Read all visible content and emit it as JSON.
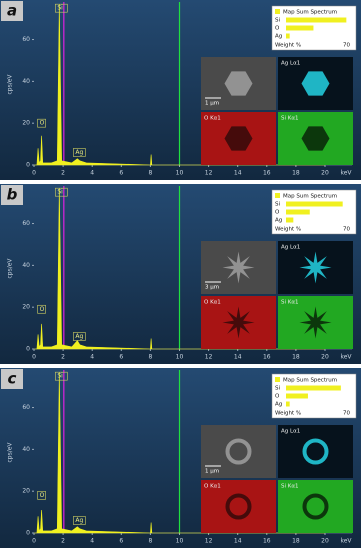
{
  "chart_data": [
    {
      "type": "line",
      "panel": "a",
      "ylabel": "cps/eV",
      "xunit": "keV",
      "color": "#f0f020",
      "x": [
        0,
        0.2,
        0.28,
        0.36,
        0.45,
        0.52,
        0.6,
        1.2,
        1.6,
        1.74,
        1.9,
        2.6,
        2.98,
        3.15,
        3.6,
        8.0,
        8.05,
        8.1,
        20
      ],
      "values": [
        0,
        0,
        8,
        1,
        2,
        14,
        1,
        1,
        2,
        77,
        2,
        1,
        3,
        2,
        1,
        0,
        5,
        0,
        0
      ],
      "xlim": [
        0,
        20
      ],
      "xticks": [
        0,
        2,
        4,
        6,
        8,
        10,
        12,
        14,
        16,
        18,
        20
      ],
      "ylim": [
        0,
        77
      ],
      "yticks": [
        0,
        20,
        40,
        60
      ],
      "annotations": [
        {
          "text": "O",
          "x": 0.52,
          "y": 20
        },
        {
          "text": "Si",
          "x": 1.74,
          "y": 75
        },
        {
          "text": "Ag",
          "x": 2.98,
          "y": 6
        }
      ],
      "cursor_lines": [
        {
          "x": 2.05,
          "color": "#e020e0"
        },
        {
          "x": 10,
          "color": "#20e040"
        }
      ],
      "inset": {
        "type": "bar",
        "title": "Map Sum Spectrum",
        "categories": [
          "Si",
          "O",
          "Ag"
        ],
        "values": [
          66,
          30,
          4
        ],
        "color": "#f0f020",
        "xlabel": "Weight %",
        "xlim": [
          0,
          70
        ],
        "xticks": [
          70
        ]
      },
      "maps": {
        "labels": [
          "Ag Lα1",
          "O Kα1",
          "Si Kα1"
        ],
        "scale_bar": "1 μm"
      }
    },
    {
      "type": "line",
      "panel": "b",
      "ylabel": "cps/eV",
      "xunit": "keV",
      "color": "#f0f020",
      "x": [
        0,
        0.2,
        0.28,
        0.36,
        0.45,
        0.52,
        0.6,
        1.2,
        1.6,
        1.74,
        1.9,
        2.6,
        2.98,
        3.15,
        3.6,
        8.0,
        8.05,
        8.1,
        20
      ],
      "values": [
        0,
        0,
        7,
        1,
        2,
        12,
        1,
        1,
        2,
        77,
        2,
        1,
        4,
        2,
        1,
        0,
        5,
        0,
        0
      ],
      "xlim": [
        0,
        20
      ],
      "xticks": [
        0,
        2,
        4,
        6,
        8,
        10,
        12,
        14,
        16,
        18,
        20
      ],
      "ylim": [
        0,
        77
      ],
      "yticks": [
        0,
        20,
        40,
        60
      ],
      "annotations": [
        {
          "text": "O",
          "x": 0.52,
          "y": 19
        },
        {
          "text": "Si",
          "x": 1.74,
          "y": 75
        },
        {
          "text": "Ag",
          "x": 2.98,
          "y": 6
        }
      ],
      "cursor_lines": [
        {
          "x": 2.05,
          "color": "#e020e0"
        },
        {
          "x": 10,
          "color": "#20e040"
        }
      ],
      "inset": {
        "type": "bar",
        "title": "Map Sum Spectrum",
        "categories": [
          "Si",
          "O",
          "Ag"
        ],
        "values": [
          62,
          26,
          8
        ],
        "color": "#f0f020",
        "xlabel": "Weight %",
        "xlim": [
          0,
          70
        ],
        "xticks": [
          70
        ]
      },
      "maps": {
        "labels": [
          "Ag Lα1",
          "O Kα1",
          "Si Kα1"
        ],
        "scale_bar": "3 μm"
      }
    },
    {
      "type": "line",
      "panel": "c",
      "ylabel": "cps/eV",
      "xunit": "keV",
      "color": "#f0f020",
      "x": [
        0,
        0.2,
        0.28,
        0.36,
        0.45,
        0.52,
        0.6,
        1.2,
        1.6,
        1.74,
        1.9,
        2.6,
        2.98,
        3.15,
        3.6,
        8.0,
        8.05,
        8.1,
        20
      ],
      "values": [
        0,
        0,
        8,
        1,
        2,
        11,
        1,
        1,
        2,
        77,
        2,
        1,
        3,
        2,
        1,
        0,
        5,
        0,
        0
      ],
      "xlim": [
        0,
        20
      ],
      "xticks": [
        0,
        2,
        4,
        6,
        8,
        10,
        12,
        14,
        16,
        18,
        20
      ],
      "ylim": [
        0,
        77
      ],
      "yticks": [
        0,
        20,
        40,
        60
      ],
      "annotations": [
        {
          "text": "O",
          "x": 0.52,
          "y": 18
        },
        {
          "text": "Si",
          "x": 1.74,
          "y": 75
        },
        {
          "text": "Ag",
          "x": 2.98,
          "y": 6
        }
      ],
      "cursor_lines": [
        {
          "x": 2.05,
          "color": "#e020e0"
        },
        {
          "x": 10,
          "color": "#20e040"
        }
      ],
      "inset": {
        "type": "bar",
        "title": "Map Sum Spectrum",
        "categories": [
          "Si",
          "O",
          "Ag"
        ],
        "values": [
          60,
          24,
          4
        ],
        "color": "#f0f020",
        "xlabel": "Weight %",
        "xlim": [
          0,
          70
        ],
        "xticks": [
          70
        ]
      },
      "maps": {
        "labels": [
          "Ag Lα1",
          "O Kα1",
          "Si Kα1"
        ],
        "scale_bar": "1 μm"
      }
    }
  ]
}
